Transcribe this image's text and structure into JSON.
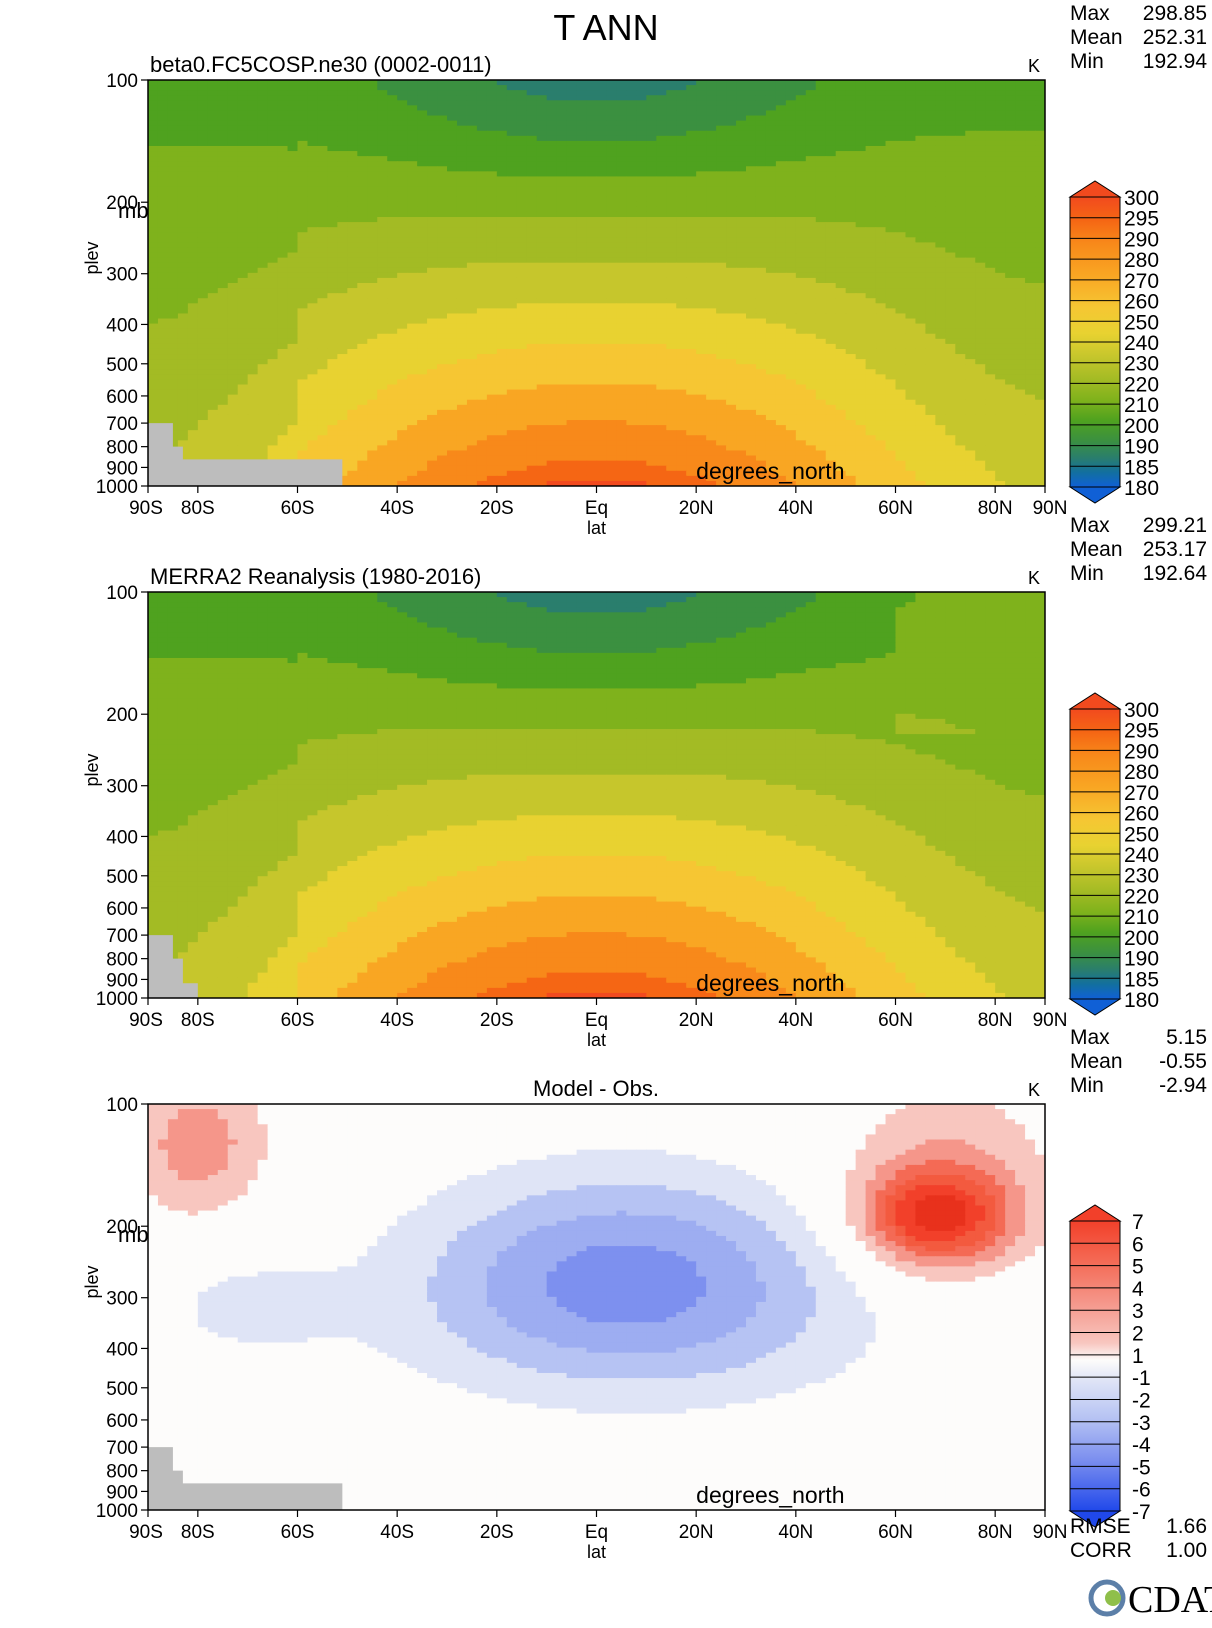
{
  "title": "T ANN",
  "logo_text": "CDAT",
  "chart_data": [
    {
      "type": "heatmap",
      "name": "model",
      "title": "beta0.FC5COSP.ne30 (0002-0011)",
      "units": "K",
      "stats": {
        "max_label": "Max",
        "max": "298.85",
        "mean_label": "Mean",
        "mean": "252.31",
        "min_label": "Min",
        "min": "192.94"
      },
      "xlabel": "lat",
      "xunits": "degrees_north",
      "ylabel": "plev",
      "yunits": "mb",
      "xlim": [
        -90,
        90
      ],
      "ylim": [
        1000,
        100
      ],
      "xticks": [
        "90S",
        "80S",
        "60S",
        "40S",
        "20S",
        "Eq",
        "20N",
        "40N",
        "60N",
        "80N",
        "90N"
      ],
      "yticks": [
        "100",
        "200",
        "300",
        "400",
        "500",
        "600",
        "700",
        "800",
        "900",
        "1000"
      ],
      "colorbar": [
        "300",
        "295",
        "290",
        "280",
        "270",
        "260",
        "250",
        "240",
        "230",
        "220",
        "210",
        "200",
        "190",
        "185",
        "180"
      ],
      "bands": [
        {
          "p": 1000,
          "eq": 297,
          "tropics": 293,
          "edge": 252
        },
        {
          "p": 850,
          "eq": 289,
          "tropics": 285,
          "edge": 247
        },
        {
          "p": 700,
          "eq": 282,
          "tropics": 276,
          "edge": 241
        },
        {
          "p": 500,
          "eq": 268,
          "tropics": 262,
          "edge": 228
        },
        {
          "p": 400,
          "eq": 256,
          "tropics": 251,
          "edge": 221
        },
        {
          "p": 300,
          "eq": 241,
          "tropics": 236,
          "edge": 219
        },
        {
          "p": 200,
          "eq": 219,
          "tropics": 216,
          "edge": 216
        },
        {
          "p": 100,
          "eq": 193,
          "tropics": 203,
          "edge": 219
        }
      ]
    },
    {
      "type": "heatmap",
      "name": "obs",
      "title": "MERRA2 Reanalysis (1980-2016)",
      "units": "K",
      "stats": {
        "max_label": "Max",
        "max": "299.21",
        "mean_label": "Mean",
        "mean": "253.17",
        "min_label": "Min",
        "min": "192.64"
      },
      "xlabel": "lat",
      "xunits": "degrees_north",
      "ylabel": "plev",
      "yunits": "",
      "xlim": [
        -90,
        90
      ],
      "ylim": [
        1000,
        100
      ],
      "xticks": [
        "90S",
        "80S",
        "60S",
        "40S",
        "20S",
        "Eq",
        "20N",
        "40N",
        "60N",
        "80N",
        "90N"
      ],
      "yticks": [
        "100",
        "200",
        "300",
        "400",
        "500",
        "600",
        "700",
        "800",
        "900",
        "1000"
      ],
      "colorbar": [
        "300",
        "295",
        "290",
        "280",
        "270",
        "260",
        "250",
        "240",
        "230",
        "220",
        "210",
        "200",
        "190",
        "185",
        "180"
      ]
    },
    {
      "type": "heatmap",
      "name": "difference",
      "title": "Model - Obs.",
      "units": "K",
      "stats": {
        "max_label": "Max",
        "max": "5.15",
        "mean_label": "Mean",
        "mean": "-0.55",
        "min_label": "Min",
        "min": "-2.94"
      },
      "xlabel": "lat",
      "xunits": "degrees_north",
      "ylabel": "plev",
      "yunits": "mb",
      "xlim": [
        -90,
        90
      ],
      "ylim": [
        1000,
        100
      ],
      "xticks": [
        "90S",
        "80S",
        "60S",
        "40S",
        "20S",
        "Eq",
        "20N",
        "40N",
        "60N",
        "80N",
        "90N"
      ],
      "yticks": [
        "100",
        "200",
        "300",
        "400",
        "500",
        "600",
        "700",
        "800",
        "900",
        "1000"
      ],
      "colorbar": [
        "7",
        "6",
        "5",
        "4",
        "3",
        "2",
        "1",
        "-1",
        "-2",
        "-3",
        "-4",
        "-5",
        "-6",
        "-7"
      ],
      "rmse_label": "RMSE",
      "rmse": "1.66",
      "corr_label": "CORR",
      "corr": "1.00"
    }
  ]
}
